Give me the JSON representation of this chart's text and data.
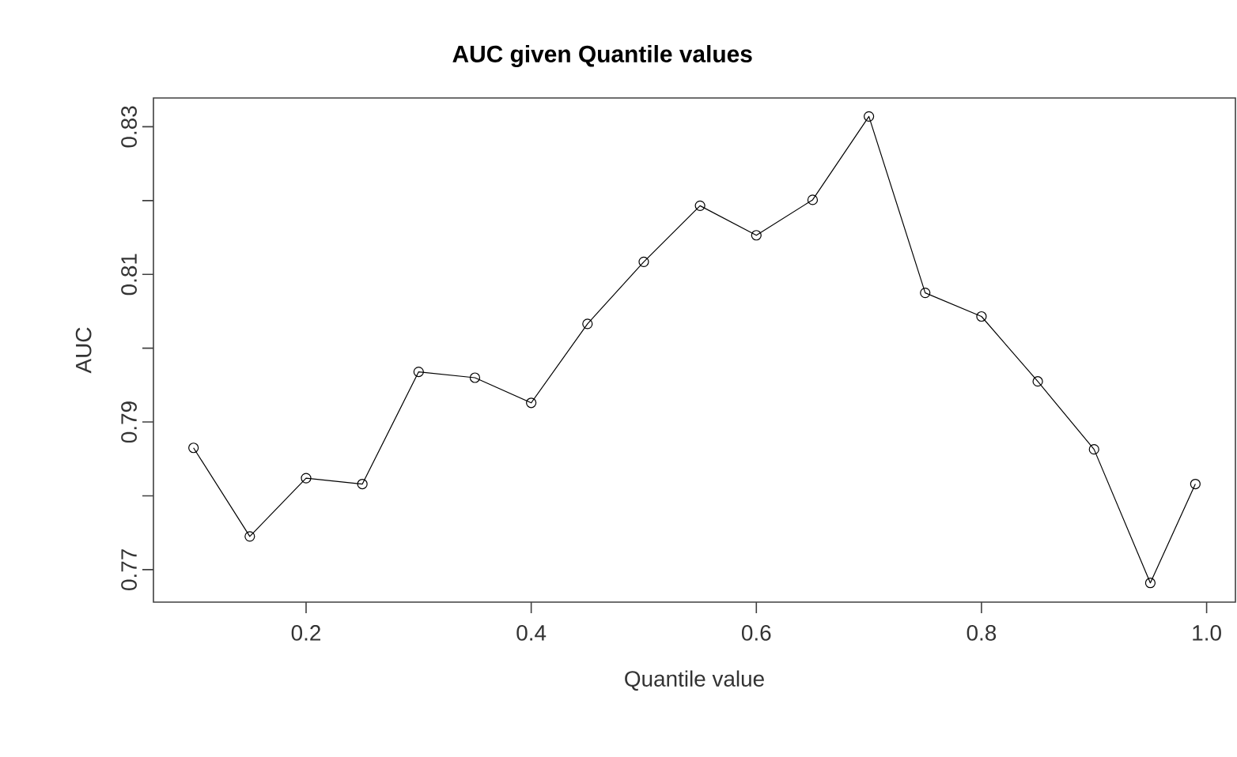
{
  "chart_data": {
    "type": "line",
    "title": "AUC given Quantile values",
    "xlabel": "Quantile value",
    "ylabel": "AUC",
    "x": [
      0.1,
      0.15,
      0.2,
      0.25,
      0.3,
      0.35,
      0.4,
      0.45,
      0.5,
      0.55,
      0.6,
      0.65,
      0.7,
      0.75,
      0.8,
      0.85,
      0.9,
      0.95,
      0.99
    ],
    "series": [
      {
        "color": "#000000",
        "values": [
          0.7865,
          0.7745,
          0.7824,
          0.7816,
          0.7968,
          0.796,
          0.7926,
          0.8033,
          0.8117,
          0.8193,
          0.8153,
          0.8201,
          0.8314,
          0.8075,
          0.8043,
          0.7955,
          0.7863,
          0.7682,
          0.7816
        ]
      }
    ],
    "xlim": [
      0.0644,
      1.0256
    ],
    "ylim": [
      0.7656,
      0.8339
    ],
    "xticks": [
      0.2,
      0.4,
      0.6,
      0.8,
      {
        "value": 1.0,
        "label": "1.0"
      }
    ],
    "yticks": [
      0.77,
      {
        "value": 0.78,
        "label": null
      },
      0.79,
      {
        "value": 0.8,
        "label": null
      },
      0.81,
      {
        "value": 0.82,
        "label": null
      },
      0.83
    ],
    "marker": "circle",
    "line_style": "solid"
  }
}
